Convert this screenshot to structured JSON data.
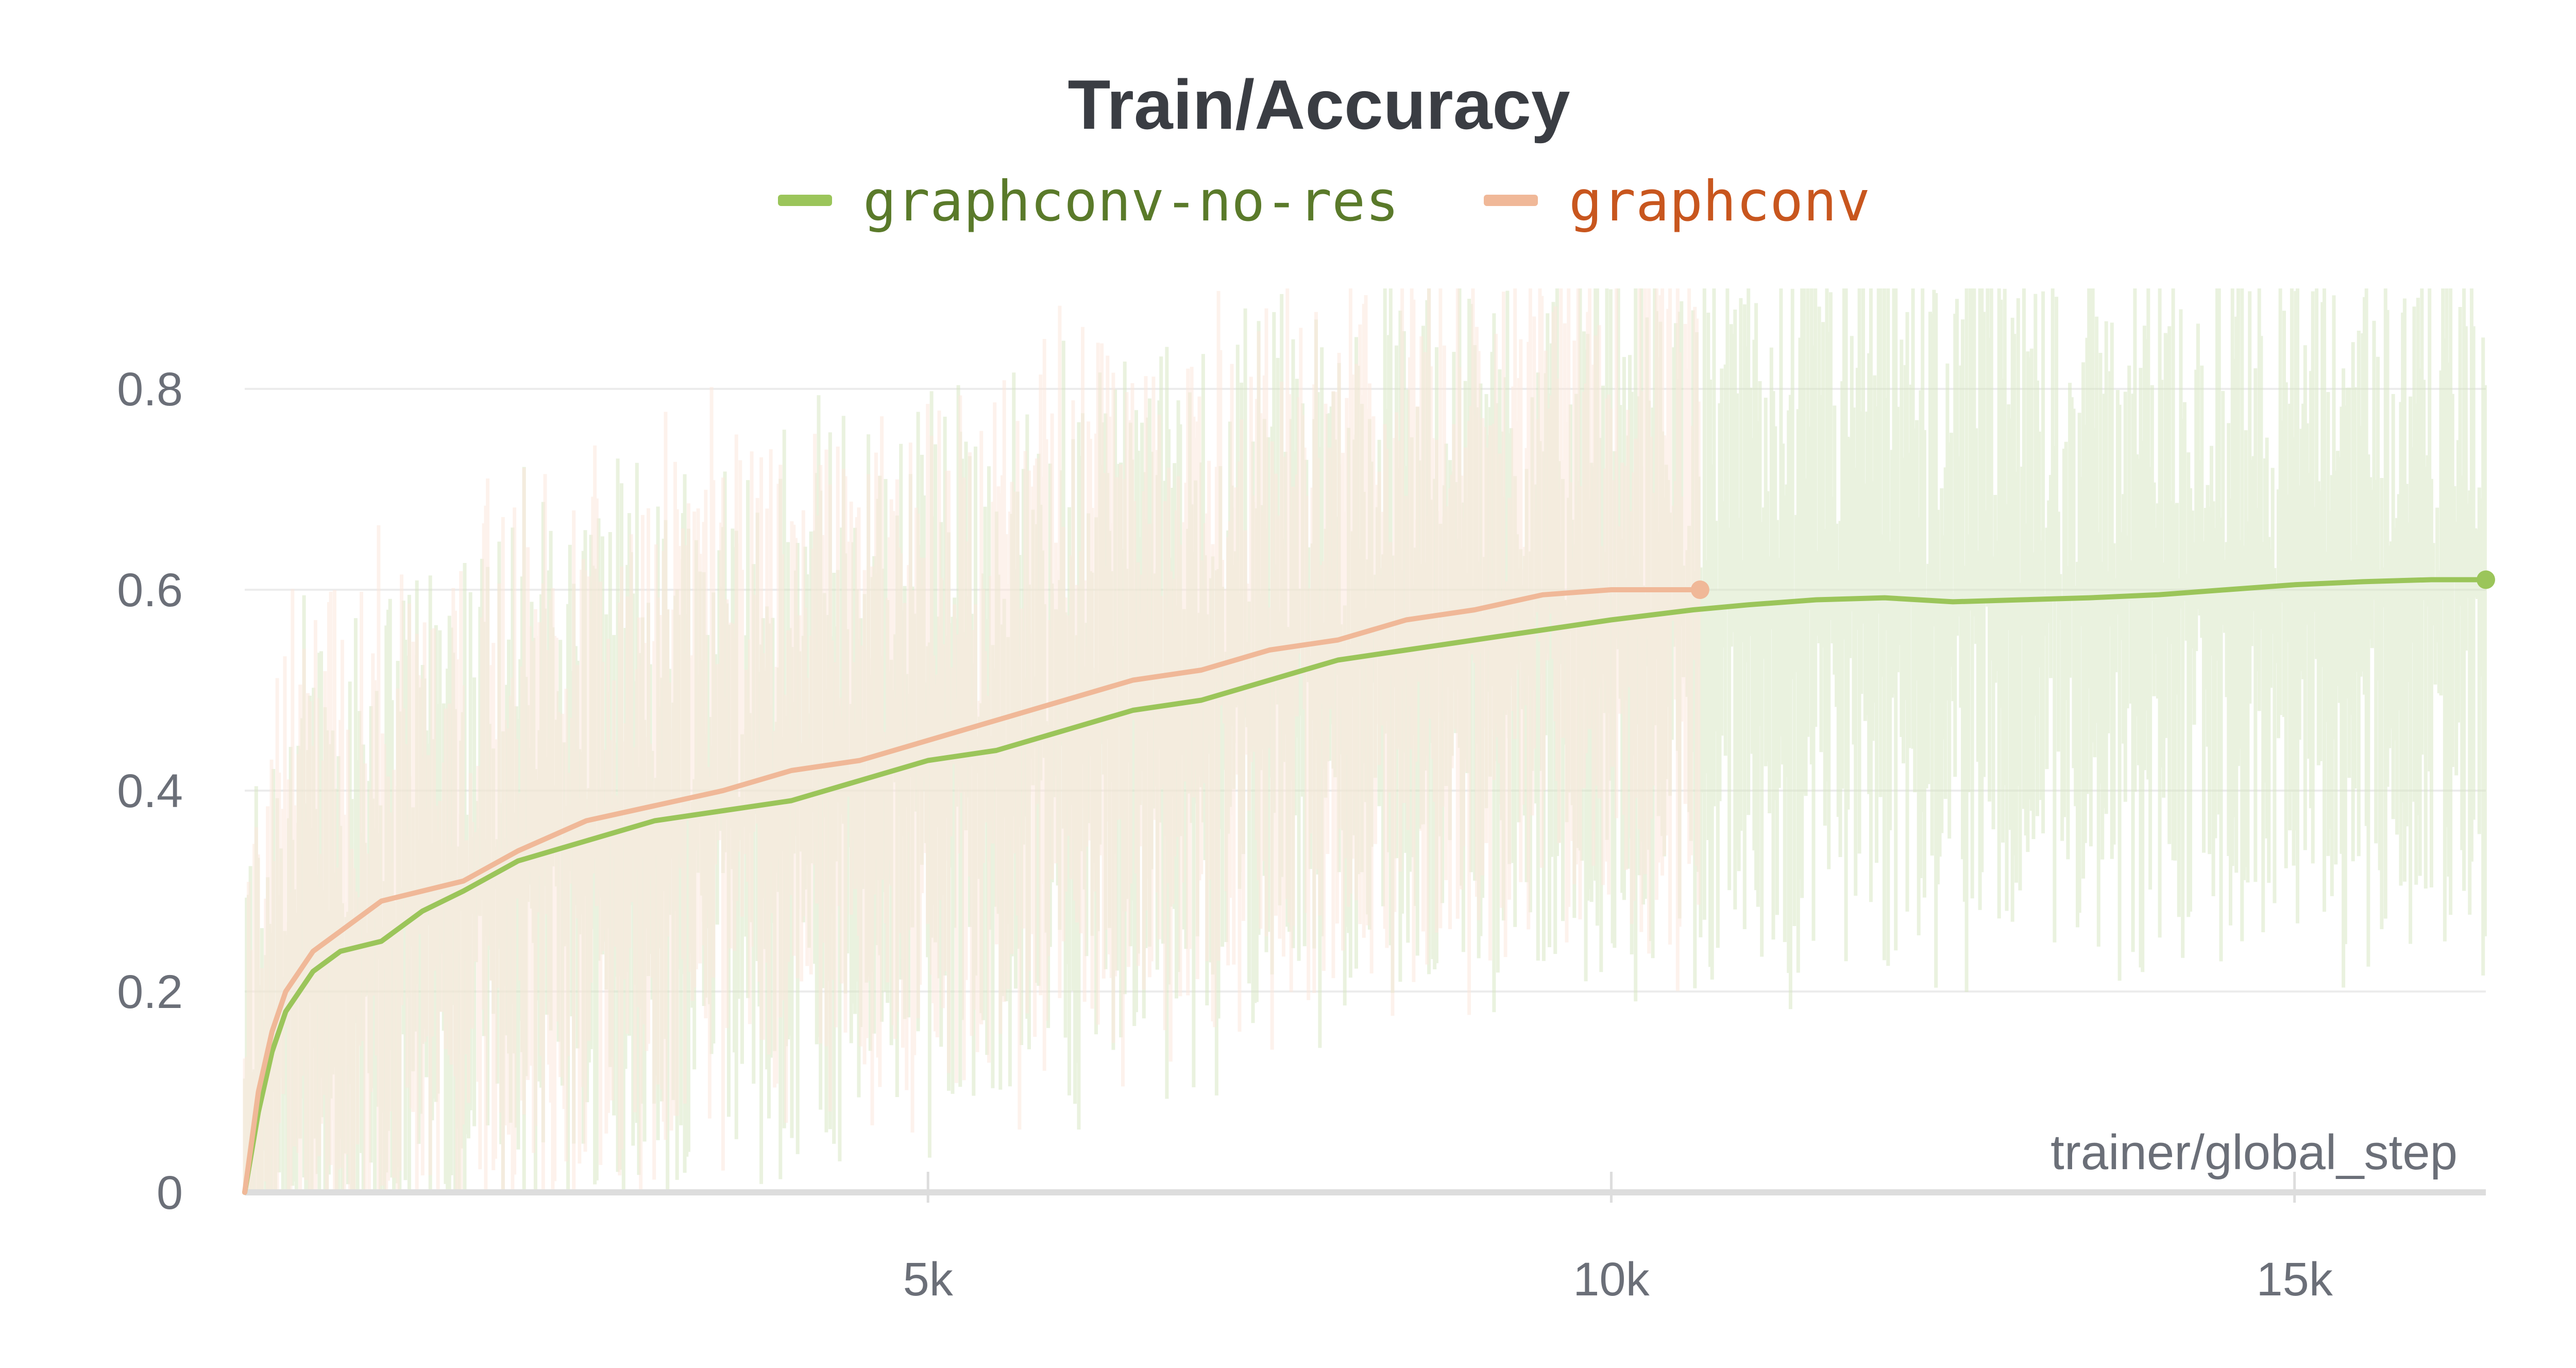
{
  "chart_data": {
    "type": "line",
    "title": "Train/Accuracy",
    "xlabel": "trainer/global_step",
    "ylabel": "",
    "xlim": [
      0,
      16400
    ],
    "ylim": [
      0,
      0.9
    ],
    "grid": true,
    "legend_position": "top-center",
    "x_ticks": [
      {
        "value": 5000,
        "label": "5k"
      },
      {
        "value": 10000,
        "label": "10k"
      },
      {
        "value": 15000,
        "label": "15k"
      }
    ],
    "y_ticks": [
      {
        "value": 0,
        "label": "0"
      },
      {
        "value": 0.2,
        "label": "0.2"
      },
      {
        "value": 0.4,
        "label": "0.4"
      },
      {
        "value": 0.6,
        "label": "0.6"
      },
      {
        "value": 0.8,
        "label": "0.8"
      }
    ],
    "series": [
      {
        "name": "graphconv-no-res",
        "color": "#9bc55a",
        "legend_text_color": "#5a7a2a",
        "raw_color": "#d9e8c4",
        "x": [
          0,
          100,
          200,
          300,
          500,
          700,
          1000,
          1300,
          1600,
          2000,
          2500,
          3000,
          3500,
          4000,
          4500,
          5000,
          5500,
          6000,
          6500,
          7000,
          7500,
          8000,
          8500,
          9000,
          9500,
          10000,
          10600,
          11000,
          11500,
          12000,
          12500,
          13000,
          13500,
          14000,
          14500,
          15000,
          15500,
          16000,
          16400
        ],
        "y": [
          0.0,
          0.08,
          0.14,
          0.18,
          0.22,
          0.24,
          0.25,
          0.28,
          0.3,
          0.33,
          0.35,
          0.37,
          0.38,
          0.39,
          0.41,
          0.43,
          0.44,
          0.46,
          0.48,
          0.49,
          0.51,
          0.53,
          0.54,
          0.55,
          0.56,
          0.57,
          0.58,
          0.585,
          0.59,
          0.592,
          0.588,
          0.59,
          0.592,
          0.595,
          0.6,
          0.605,
          0.608,
          0.61,
          0.61
        ]
      },
      {
        "name": "graphconv",
        "color": "#f0b898",
        "legend_text_color": "#c8561e",
        "raw_color": "#fbe7dc",
        "x": [
          0,
          100,
          200,
          300,
          500,
          700,
          1000,
          1300,
          1600,
          2000,
          2500,
          3000,
          3500,
          4000,
          4500,
          5000,
          5500,
          6000,
          6500,
          7000,
          7500,
          8000,
          8500,
          9000,
          9500,
          10000,
          10650
        ],
        "y": [
          0.0,
          0.1,
          0.16,
          0.2,
          0.24,
          0.26,
          0.29,
          0.3,
          0.31,
          0.34,
          0.37,
          0.385,
          0.4,
          0.42,
          0.43,
          0.45,
          0.47,
          0.49,
          0.51,
          0.52,
          0.54,
          0.55,
          0.57,
          0.58,
          0.595,
          0.6,
          0.6
        ]
      }
    ]
  }
}
